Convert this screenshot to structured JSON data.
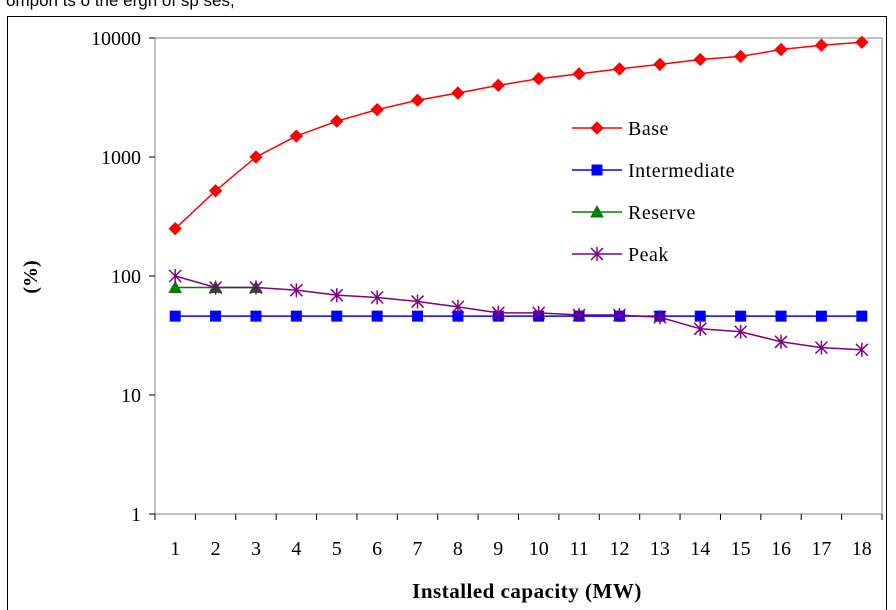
{
  "caption": "ompon ts o the ergh of sp ses,",
  "chart_data": {
    "type": "line",
    "xlabel": "Installed capacity (MW)",
    "ylabel": "(%)",
    "yscale": "log",
    "ylim": [
      1,
      10000
    ],
    "yticks": [
      1,
      10,
      100,
      1000,
      10000
    ],
    "ytick_labels": [
      "1",
      "10",
      "100",
      "1000",
      "10000"
    ],
    "x": [
      1,
      2,
      3,
      4,
      5,
      6,
      7,
      8,
      9,
      10,
      11,
      12,
      13,
      14,
      15,
      16,
      17,
      18
    ],
    "grid": false,
    "legend_position": "upper-right",
    "series": [
      {
        "name": "Base",
        "color": "#ff0000",
        "marker": "diamond",
        "values": [
          250,
          520,
          1000,
          1500,
          2000,
          2500,
          3000,
          3450,
          4000,
          4550,
          5000,
          5500,
          6000,
          6600,
          7000,
          8000,
          8700,
          9200
        ]
      },
      {
        "name": "Intermediate",
        "color": "#0000ff",
        "marker": "square",
        "values": [
          46,
          46,
          46,
          46,
          46,
          46,
          46,
          46,
          46,
          46,
          46,
          46,
          46,
          46,
          46,
          46,
          46,
          46
        ]
      },
      {
        "name": "Reserve",
        "color": "#008000",
        "marker": "triangle",
        "values": [
          80,
          80,
          80,
          null,
          null,
          null,
          null,
          null,
          null,
          null,
          null,
          null,
          null,
          null,
          null,
          null,
          null,
          null
        ]
      },
      {
        "name": "Peak",
        "color": "#800080",
        "marker": "star",
        "values": [
          100,
          80,
          80,
          76,
          69,
          66,
          61,
          55,
          49,
          49,
          47,
          47,
          45,
          36,
          34,
          28,
          25,
          24
        ]
      }
    ]
  }
}
